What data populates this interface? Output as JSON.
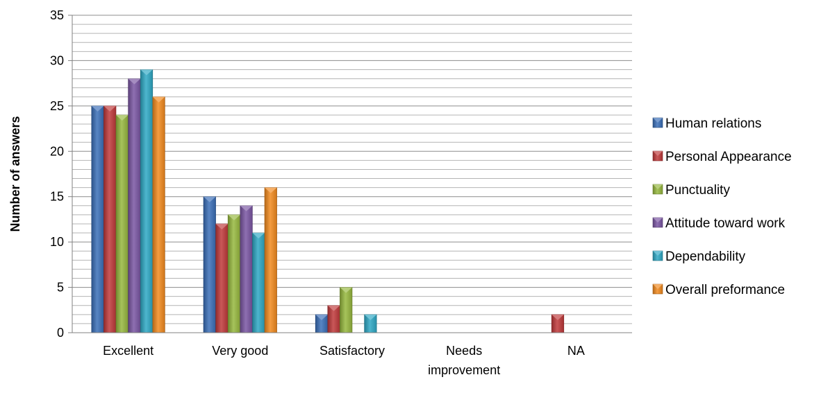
{
  "chart_data": {
    "type": "bar",
    "title": "",
    "xlabel": "",
    "ylabel": "Number of answers",
    "categories": [
      "Excellent",
      "Very good",
      "Satisfactory",
      "Needs improvement",
      "NA"
    ],
    "ylim": [
      0,
      35
    ],
    "yticks": [
      0,
      5,
      10,
      15,
      20,
      25,
      30,
      35
    ],
    "minor_grid_step": 1,
    "grid": true,
    "legend_position": "right",
    "series": [
      {
        "name": "Human relations",
        "color": "#3a6fb8",
        "values": [
          25,
          15,
          2,
          0,
          0
        ]
      },
      {
        "name": "Personal Appearance",
        "color": "#c0393a",
        "values": [
          25,
          12,
          3,
          0,
          2
        ]
      },
      {
        "name": "Punctuality",
        "color": "#96b83e",
        "values": [
          24,
          13,
          5,
          0,
          0
        ]
      },
      {
        "name": "Attitude toward work",
        "color": "#7a56a3",
        "values": [
          28,
          14,
          0,
          0,
          0
        ]
      },
      {
        "name": "Dependability",
        "color": "#2ea8c4",
        "values": [
          29,
          11,
          2,
          0,
          0
        ]
      },
      {
        "name": "Overall preformance",
        "color": "#f28a1e",
        "values": [
          26,
          16,
          0,
          0,
          0
        ]
      }
    ]
  }
}
